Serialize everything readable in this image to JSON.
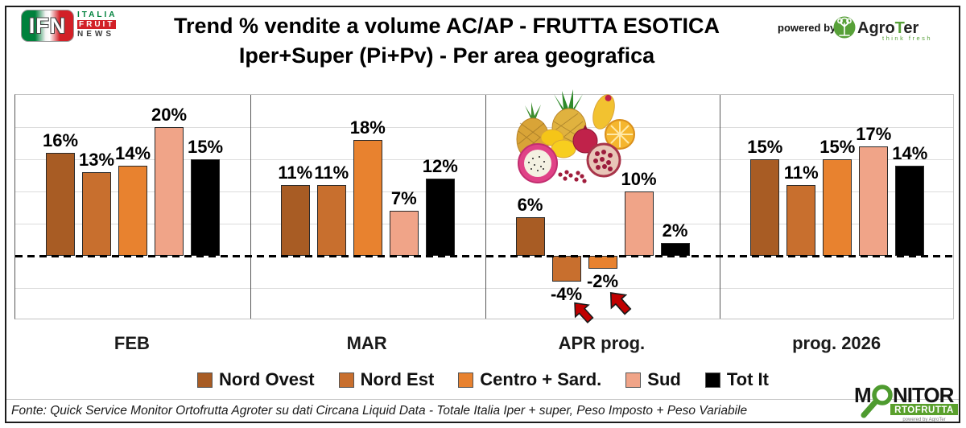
{
  "header": {
    "ifn_logo": {
      "letters": "IFN",
      "word1": "ITALIA",
      "word2": "FRUIT",
      "word3": "NEWS"
    },
    "title_line1": "Trend % vendite a volume AC/AP - FRUTTA ESOTICA",
    "title_line2": "Iper+Super (Pi+Pv) - Per area geografica",
    "powered_by": "powered by",
    "agroter_name": "AgroTer",
    "agroter_tagline": "think fresh"
  },
  "chart_data": {
    "type": "bar",
    "title": "Trend % vendite a volume AC/AP - FRUTTA ESOTICA",
    "subtitle": "Iper+Super (Pi+Pv) - Per area geografica",
    "categories": [
      "FEB",
      "MAR",
      "APR prog.",
      "prog. 2026"
    ],
    "series": [
      {
        "name": "Nord Ovest",
        "color": "#A85C24",
        "values": [
          16,
          11,
          6,
          15
        ]
      },
      {
        "name": "Nord Est",
        "color": "#C86F2E",
        "values": [
          13,
          11,
          -4,
          11
        ]
      },
      {
        "name": "Centro + Sard.",
        "color": "#E8822F",
        "values": [
          14,
          18,
          -2,
          15
        ]
      },
      {
        "name": "Sud",
        "color": "#F0A488",
        "values": [
          20,
          7,
          10,
          17
        ]
      },
      {
        "name": "Tot It",
        "color": "#000000",
        "values": [
          15,
          12,
          2,
          14
        ]
      }
    ],
    "value_suffix": "%",
    "ylim": [
      -10,
      25
    ],
    "gridline_step": 5,
    "gridline_values": [
      20,
      15,
      10,
      5,
      -5
    ],
    "zero_line": "dashed",
    "grid": true,
    "legend_position": "bottom",
    "annotations": [
      "exotic-fruits-photo over APR prog.",
      "two red up-left arrows under negative APR bars"
    ]
  },
  "footer": {
    "source": "Fonte: Quick Service Monitor Ortofrutta Agroter su dati Circana Liquid Data - Totale Italia Iper + super, Peso Imposto + Peso Variabile",
    "monitor_logo": {
      "part1": "M",
      "part2": "NITOR",
      "line2": "RTOFRUTTA",
      "powered": "powered by AgroTer"
    }
  }
}
